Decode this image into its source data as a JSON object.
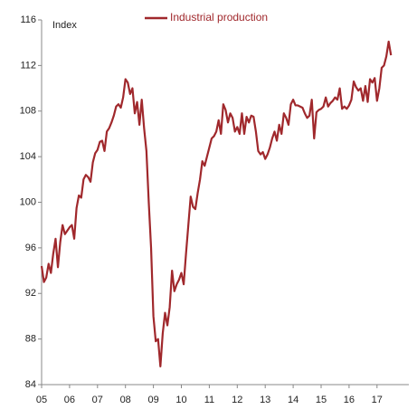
{
  "chart_data": {
    "type": "line",
    "y_axis_label": "Index",
    "categories": [
      "05",
      null,
      null,
      null,
      null,
      null,
      null,
      null,
      null,
      null,
      null,
      null,
      "06",
      null,
      null,
      null,
      null,
      null,
      null,
      null,
      null,
      null,
      null,
      null,
      "07",
      null,
      null,
      null,
      null,
      null,
      null,
      null,
      null,
      null,
      null,
      null,
      "08",
      null,
      null,
      null,
      null,
      null,
      null,
      null,
      null,
      null,
      null,
      null,
      "09",
      null,
      null,
      null,
      null,
      null,
      null,
      null,
      null,
      null,
      null,
      null,
      "10",
      null,
      null,
      null,
      null,
      null,
      null,
      null,
      null,
      null,
      null,
      null,
      "11",
      null,
      null,
      null,
      null,
      null,
      null,
      null,
      null,
      null,
      null,
      null,
      "12",
      null,
      null,
      null,
      null,
      null,
      null,
      null,
      null,
      null,
      null,
      null,
      "13",
      null,
      null,
      null,
      null,
      null,
      null,
      null,
      null,
      null,
      null,
      null,
      "14",
      null,
      null,
      null,
      null,
      null,
      null,
      null,
      null,
      null,
      null,
      null,
      "15",
      null,
      null,
      null,
      null,
      null,
      null,
      null,
      null,
      null,
      null,
      null,
      "16",
      null,
      null,
      null,
      null,
      null,
      null,
      null,
      null,
      null,
      null,
      null,
      "17",
      null,
      null,
      null,
      null,
      null,
      null
    ],
    "series": [
      {
        "name": "Industrial production",
        "color": "#a0282c",
        "values": [
          94.4,
          93.0,
          93.4,
          94.6,
          93.8,
          95.5,
          96.8,
          94.3,
          96.5,
          98.0,
          97.2,
          97.5,
          97.8,
          98.0,
          96.8,
          99.5,
          100.6,
          100.4,
          102.0,
          102.4,
          102.2,
          101.8,
          103.5,
          104.3,
          104.6,
          105.3,
          105.4,
          104.5,
          106.2,
          106.5,
          107.0,
          107.6,
          108.4,
          108.6,
          108.3,
          109.2,
          110.8,
          110.5,
          109.5,
          110.0,
          107.8,
          108.8,
          106.8,
          109.0,
          106.5,
          104.5,
          100.0,
          96.0,
          90.0,
          87.8,
          88.0,
          85.6,
          88.5,
          90.3,
          89.2,
          90.8,
          94.0,
          92.2,
          92.8,
          93.2,
          93.8,
          92.8,
          95.5,
          98.0,
          100.5,
          99.6,
          99.4,
          100.8,
          102.0,
          103.6,
          103.2,
          104.0,
          104.8,
          105.6,
          105.8,
          106.2,
          107.2,
          106.0,
          108.6,
          108.1,
          107.0,
          107.8,
          107.4,
          106.2,
          106.6,
          106.0,
          107.8,
          106.0,
          107.5,
          107.0,
          107.6,
          107.5,
          106.2,
          104.5,
          104.2,
          104.4,
          103.8,
          104.2,
          104.8,
          105.6,
          106.2,
          105.4,
          106.8,
          106.0,
          107.8,
          107.4,
          106.8,
          108.6,
          109.0,
          108.5,
          108.5,
          108.4,
          108.3,
          107.8,
          107.4,
          107.6,
          109.0,
          105.6,
          107.9,
          108.1,
          108.2,
          108.4,
          109.2,
          108.4,
          108.7,
          108.9,
          109.2,
          109.0,
          110.0,
          108.2,
          108.4,
          108.2,
          108.5,
          109.0,
          110.6,
          110.1,
          109.8,
          110.0,
          108.9,
          110.2,
          108.8,
          110.8,
          110.5,
          110.9,
          108.9,
          110.0,
          111.8,
          112.0,
          112.8,
          114.1,
          112.9
        ]
      }
    ],
    "ylim": [
      84,
      116
    ],
    "yticks": [
      84,
      88,
      92,
      96,
      100,
      104,
      108,
      112,
      116
    ],
    "grid": false,
    "legend": "top"
  }
}
